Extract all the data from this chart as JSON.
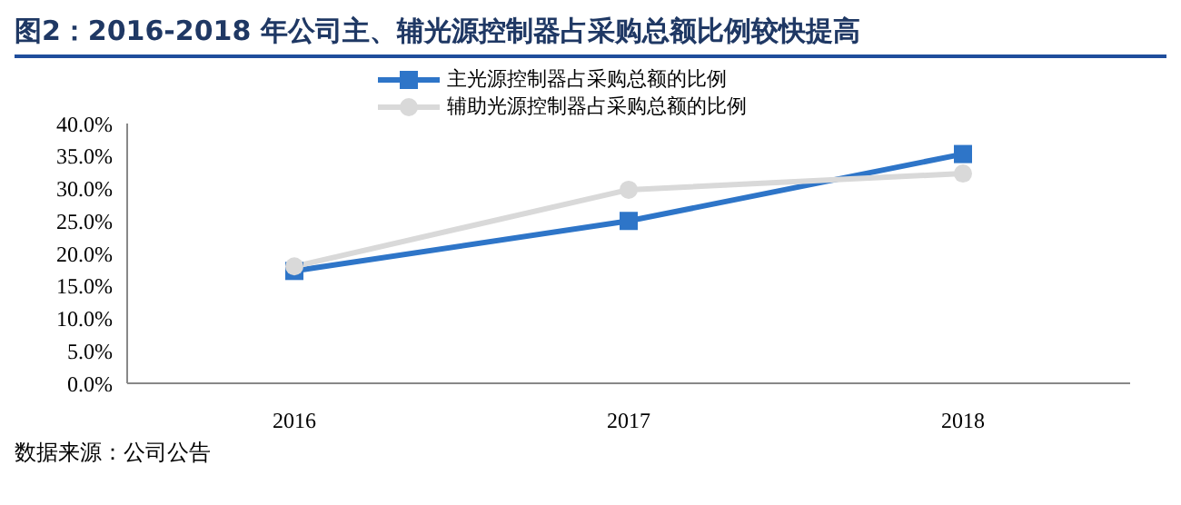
{
  "chart_data": {
    "type": "line",
    "title": "图2：2016-2018 年公司主、辅光源控制器占采购总额比例较快提高",
    "categories": [
      "2016",
      "2017",
      "2018"
    ],
    "series": [
      {
        "name": "主光源控制器占采购总额的比例",
        "color": "#2e75c8",
        "values": [
          17.3,
          25.0,
          35.3
        ],
        "marker": "square"
      },
      {
        "name": "辅助光源控制器占采购总额的比例",
        "color": "#d9d9d9",
        "values": [
          18.0,
          29.8,
          32.3
        ],
        "marker": "circle"
      }
    ],
    "ylim": [
      0,
      40
    ],
    "yticks": [
      {
        "value": 0,
        "label": "0.0%"
      },
      {
        "value": 5,
        "label": "5.0%"
      },
      {
        "value": 10,
        "label": "10.0%"
      },
      {
        "value": 15,
        "label": "15.0%"
      },
      {
        "value": 20,
        "label": "20.0%"
      },
      {
        "value": 25,
        "label": "25.0%"
      },
      {
        "value": 30,
        "label": "30.0%"
      },
      {
        "value": 35,
        "label": "35.0%"
      },
      {
        "value": 40,
        "label": "40.0%"
      }
    ],
    "grid": false,
    "legend": "top",
    "line_style": "solid",
    "annotations": [
      "数据来源：公司公告"
    ]
  }
}
